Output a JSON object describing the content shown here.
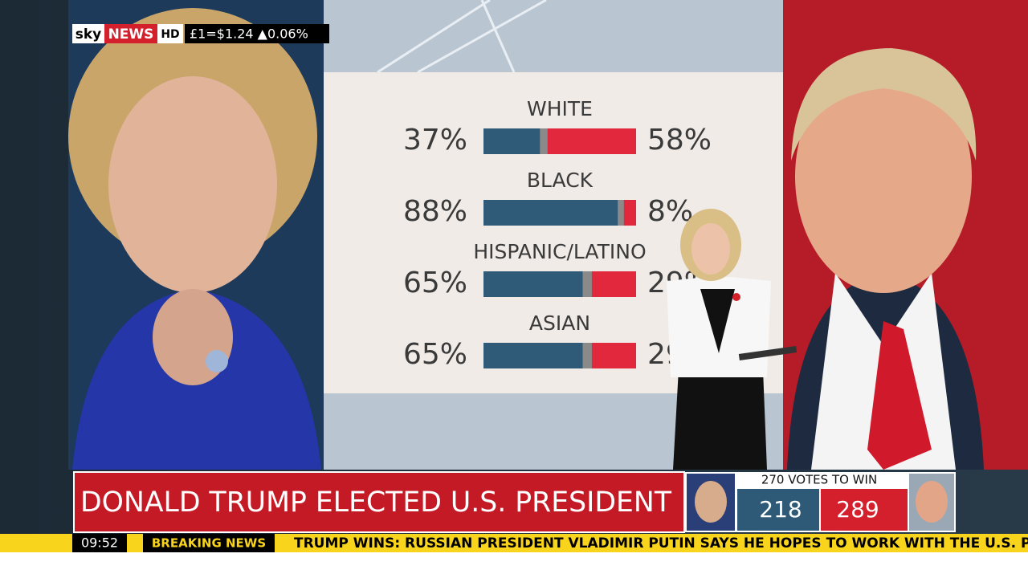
{
  "logo": {
    "brand": "sky",
    "channel": "NEWS",
    "format": "HD"
  },
  "market": "£1=$1.24 ▲0.06%",
  "chart_data": {
    "type": "bar",
    "categories": [
      "WHITE",
      "BLACK",
      "HISPANIC/LATINO",
      "ASIAN"
    ],
    "series": [
      {
        "color": "#2f5a78",
        "values": [
          37,
          88,
          65,
          65
        ],
        "value_labels": [
          "37%",
          "88%",
          "65%",
          "65%"
        ]
      },
      {
        "color": "#e2283c",
        "values": [
          58,
          8,
          29,
          29
        ],
        "value_labels": [
          "58%",
          "8%",
          "29%",
          "29%"
        ]
      }
    ],
    "xlim": [
      0,
      100
    ]
  },
  "headline": "DONALD TRUMP ELECTED U.S. PRESIDENT",
  "scoreboard": {
    "label": "270 VOTES TO WIN",
    "left": "218",
    "right": "289"
  },
  "ticker": {
    "time": "09:52",
    "label": "BREAKING NEWS",
    "text": "TRUMP WINS: RUSSIAN PRESIDENT VLADIMIR PUTIN SAYS HE HOPES TO WORK WITH THE U.S. PRESIDENT"
  }
}
